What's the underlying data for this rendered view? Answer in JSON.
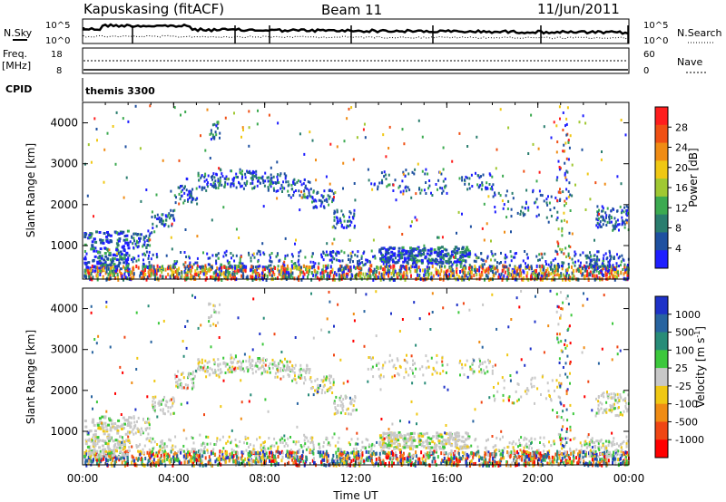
{
  "header": {
    "station": "Kapuskasing (fitACF)",
    "beam": "Beam 11",
    "date": "11/Jun/2011"
  },
  "noise_panel": {
    "left_label": "N.Sky",
    "right_label": "N.Search",
    "left_ticks": [
      "10^5",
      "10^0"
    ],
    "right_ticks": [
      "10^5",
      "10^0"
    ]
  },
  "freq_panel": {
    "left_label_1": "Freq.",
    "left_label_2": "[MHz]",
    "right_label": "Nave",
    "left_ticks": [
      "18",
      "8"
    ],
    "right_ticks": [
      "60",
      "0"
    ]
  },
  "cpid_panel": {
    "left_label": "CPID",
    "program": "themis 3300"
  },
  "x_axis": {
    "label": "Time UT",
    "ticks": [
      "00:00",
      "04:00",
      "08:00",
      "12:00",
      "16:00",
      "20:00",
      "00:00"
    ]
  },
  "power_panel": {
    "ylabel": "Slant Range [km]",
    "yticks": [
      "1000",
      "2000",
      "3000",
      "4000"
    ],
    "colorbar_label": "Power [dB]",
    "colorbar_ticks": [
      "4",
      "8",
      "12",
      "16",
      "20",
      "24",
      "28"
    ],
    "colors": [
      "#1e1eff",
      "#1e50a0",
      "#2a7d6e",
      "#3caa50",
      "#a0c832",
      "#f0c814",
      "#f08c14",
      "#f05014",
      "#ff1e1e"
    ]
  },
  "velocity_panel": {
    "ylabel": "Slant Range [km]",
    "yticks": [
      "1000",
      "2000",
      "3000",
      "4000"
    ],
    "colorbar_label": "Velocity [m s^-1]",
    "colorbar_ticks": [
      "1000",
      "500",
      "100",
      "25",
      "-25",
      "-100",
      "-500",
      "-1000"
    ],
    "colors": [
      "#1e32c8",
      "#2864a0",
      "#288c78",
      "#3cc83c",
      "#c8c8c8",
      "#f0c814",
      "#f08c14",
      "#f04614",
      "#ff0000"
    ]
  },
  "chart_data": {
    "type": "heatmap",
    "x_range_hours": [
      0,
      24
    ],
    "y_range_km": [
      180,
      4500
    ],
    "xlabel": "Time UT",
    "ylabel": "Slant Range [km]",
    "notes": "Range-time-intensity plot with SuperDARN backscatter; scatter points rendered procedurally"
  }
}
